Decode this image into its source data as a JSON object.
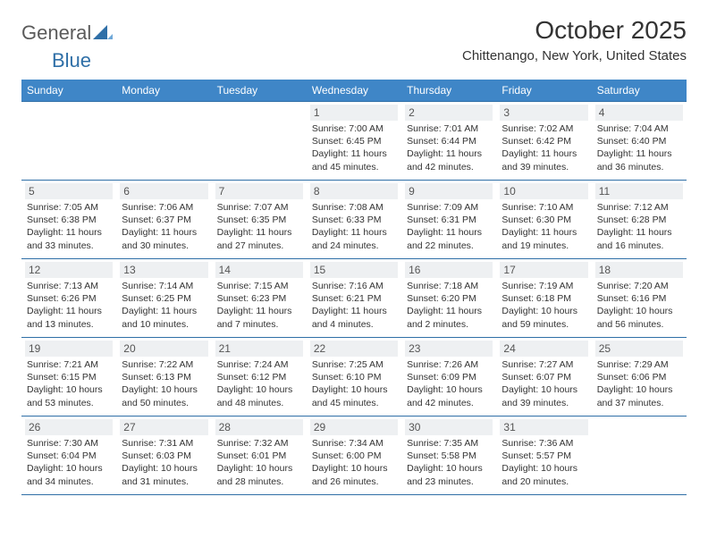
{
  "logo": {
    "text_general": "General",
    "text_blue": "Blue"
  },
  "title": "October 2025",
  "location": "Chittenango, New York, United States",
  "colors": {
    "header_bg": "#3f86c7",
    "header_text": "#ffffff",
    "row_border": "#2f6fa7",
    "daynum_bg": "#eef0f2",
    "text": "#333333"
  },
  "days_of_week": [
    "Sunday",
    "Monday",
    "Tuesday",
    "Wednesday",
    "Thursday",
    "Friday",
    "Saturday"
  ],
  "weeks": [
    [
      null,
      null,
      null,
      {
        "n": "1",
        "sr": "7:00 AM",
        "ss": "6:45 PM",
        "dl": "11 hours and 45 minutes."
      },
      {
        "n": "2",
        "sr": "7:01 AM",
        "ss": "6:44 PM",
        "dl": "11 hours and 42 minutes."
      },
      {
        "n": "3",
        "sr": "7:02 AM",
        "ss": "6:42 PM",
        "dl": "11 hours and 39 minutes."
      },
      {
        "n": "4",
        "sr": "7:04 AM",
        "ss": "6:40 PM",
        "dl": "11 hours and 36 minutes."
      }
    ],
    [
      {
        "n": "5",
        "sr": "7:05 AM",
        "ss": "6:38 PM",
        "dl": "11 hours and 33 minutes."
      },
      {
        "n": "6",
        "sr": "7:06 AM",
        "ss": "6:37 PM",
        "dl": "11 hours and 30 minutes."
      },
      {
        "n": "7",
        "sr": "7:07 AM",
        "ss": "6:35 PM",
        "dl": "11 hours and 27 minutes."
      },
      {
        "n": "8",
        "sr": "7:08 AM",
        "ss": "6:33 PM",
        "dl": "11 hours and 24 minutes."
      },
      {
        "n": "9",
        "sr": "7:09 AM",
        "ss": "6:31 PM",
        "dl": "11 hours and 22 minutes."
      },
      {
        "n": "10",
        "sr": "7:10 AM",
        "ss": "6:30 PM",
        "dl": "11 hours and 19 minutes."
      },
      {
        "n": "11",
        "sr": "7:12 AM",
        "ss": "6:28 PM",
        "dl": "11 hours and 16 minutes."
      }
    ],
    [
      {
        "n": "12",
        "sr": "7:13 AM",
        "ss": "6:26 PM",
        "dl": "11 hours and 13 minutes."
      },
      {
        "n": "13",
        "sr": "7:14 AM",
        "ss": "6:25 PM",
        "dl": "11 hours and 10 minutes."
      },
      {
        "n": "14",
        "sr": "7:15 AM",
        "ss": "6:23 PM",
        "dl": "11 hours and 7 minutes."
      },
      {
        "n": "15",
        "sr": "7:16 AM",
        "ss": "6:21 PM",
        "dl": "11 hours and 4 minutes."
      },
      {
        "n": "16",
        "sr": "7:18 AM",
        "ss": "6:20 PM",
        "dl": "11 hours and 2 minutes."
      },
      {
        "n": "17",
        "sr": "7:19 AM",
        "ss": "6:18 PM",
        "dl": "10 hours and 59 minutes."
      },
      {
        "n": "18",
        "sr": "7:20 AM",
        "ss": "6:16 PM",
        "dl": "10 hours and 56 minutes."
      }
    ],
    [
      {
        "n": "19",
        "sr": "7:21 AM",
        "ss": "6:15 PM",
        "dl": "10 hours and 53 minutes."
      },
      {
        "n": "20",
        "sr": "7:22 AM",
        "ss": "6:13 PM",
        "dl": "10 hours and 50 minutes."
      },
      {
        "n": "21",
        "sr": "7:24 AM",
        "ss": "6:12 PM",
        "dl": "10 hours and 48 minutes."
      },
      {
        "n": "22",
        "sr": "7:25 AM",
        "ss": "6:10 PM",
        "dl": "10 hours and 45 minutes."
      },
      {
        "n": "23",
        "sr": "7:26 AM",
        "ss": "6:09 PM",
        "dl": "10 hours and 42 minutes."
      },
      {
        "n": "24",
        "sr": "7:27 AM",
        "ss": "6:07 PM",
        "dl": "10 hours and 39 minutes."
      },
      {
        "n": "25",
        "sr": "7:29 AM",
        "ss": "6:06 PM",
        "dl": "10 hours and 37 minutes."
      }
    ],
    [
      {
        "n": "26",
        "sr": "7:30 AM",
        "ss": "6:04 PM",
        "dl": "10 hours and 34 minutes."
      },
      {
        "n": "27",
        "sr": "7:31 AM",
        "ss": "6:03 PM",
        "dl": "10 hours and 31 minutes."
      },
      {
        "n": "28",
        "sr": "7:32 AM",
        "ss": "6:01 PM",
        "dl": "10 hours and 28 minutes."
      },
      {
        "n": "29",
        "sr": "7:34 AM",
        "ss": "6:00 PM",
        "dl": "10 hours and 26 minutes."
      },
      {
        "n": "30",
        "sr": "7:35 AM",
        "ss": "5:58 PM",
        "dl": "10 hours and 23 minutes."
      },
      {
        "n": "31",
        "sr": "7:36 AM",
        "ss": "5:57 PM",
        "dl": "10 hours and 20 minutes."
      },
      null
    ]
  ],
  "labels": {
    "sunrise": "Sunrise:",
    "sunset": "Sunset:",
    "daylight": "Daylight:"
  }
}
